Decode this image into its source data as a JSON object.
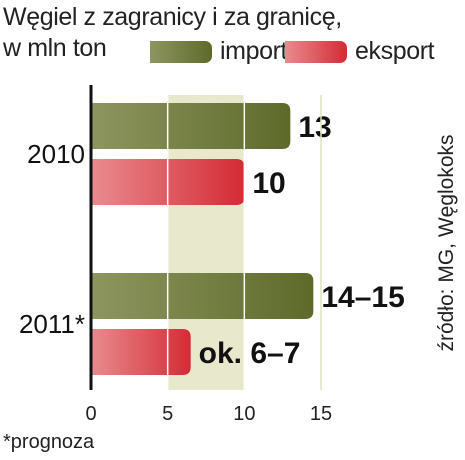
{
  "title_line1": "Węgiel z zagranicy i za granicę,",
  "title_line2": "w mln ton",
  "footnote": "*prognoza",
  "source": "źródło: MG, Węglokoks",
  "colors": {
    "import": "#5e6a2a",
    "import_light": "#8d9660",
    "eksport": "#d42b35",
    "eksport_light": "#e98b8f",
    "band": "#e7e8cc"
  },
  "chart_data": {
    "type": "bar",
    "orientation": "horizontal",
    "categories": [
      "2010",
      "2011*"
    ],
    "series": [
      {
        "name": "import",
        "values": [
          13,
          14.5
        ],
        "labels": [
          "13",
          "14–15"
        ]
      },
      {
        "name": "eksport",
        "values": [
          10,
          6.5
        ],
        "labels": [
          "10",
          "ok. 6–7"
        ]
      }
    ],
    "xlim": [
      0,
      15
    ],
    "xticks": [
      0,
      5,
      10,
      15
    ],
    "grid": true,
    "legend_position": "top"
  }
}
